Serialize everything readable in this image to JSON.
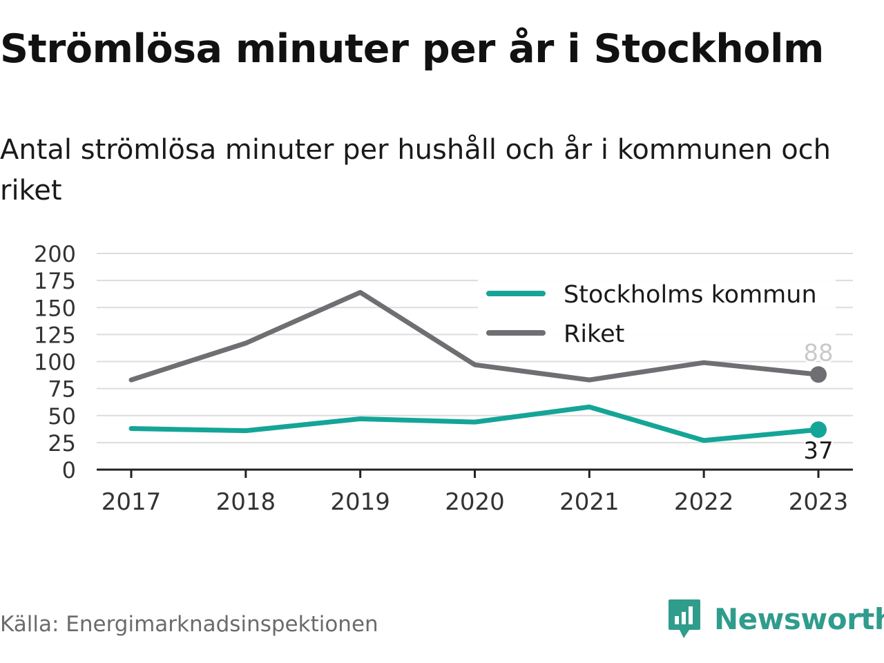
{
  "header": {
    "title": "Strömlösa minuter per år i Stockholm",
    "subtitle": "Antal strömlösa minuter per hushåll och år i kommunen och riket"
  },
  "footer": {
    "source": "Källa: Energimarknadsinspektionen",
    "brand": "Newsworthy",
    "brand_icon": "bar-chart-badge-icon"
  },
  "colors": {
    "stockholm": "#14a597",
    "riket": "#6f6f73",
    "brand": "#2f9c8c",
    "grid": "#dcdcdc",
    "axis": "#222222"
  },
  "chart_data": {
    "type": "line",
    "title": "Strömlösa minuter per år i Stockholm",
    "subtitle": "Antal strömlösa minuter per hushåll och år i kommunen och riket",
    "x": [
      "2017",
      "2018",
      "2019",
      "2020",
      "2021",
      "2022",
      "2023"
    ],
    "yticks": [
      "0",
      "25",
      "50",
      "75",
      "100",
      "125",
      "150",
      "175",
      "200"
    ],
    "ylim": [
      0,
      200
    ],
    "grid": true,
    "legend_position": "top-right",
    "series": [
      {
        "name": "Stockholms kommun",
        "color": "#14a597",
        "values": [
          38,
          36,
          47,
          44,
          58,
          27,
          37
        ],
        "end_label": "37"
      },
      {
        "name": "Riket",
        "color": "#6f6f73",
        "values": [
          83,
          117,
          164,
          97,
          83,
          99,
          88
        ],
        "end_label": "88"
      }
    ]
  }
}
